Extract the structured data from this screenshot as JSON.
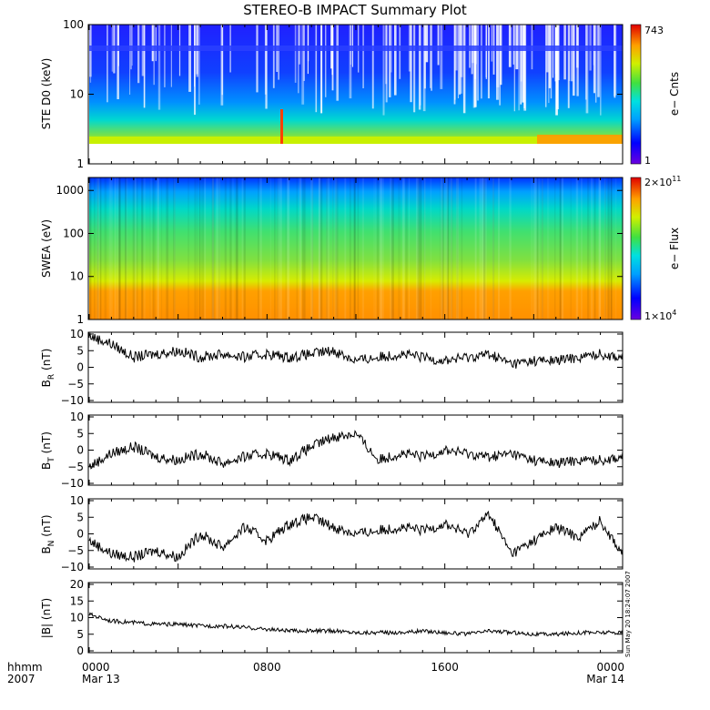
{
  "chart_data": [
    {
      "type": "heatmap",
      "title": "STEREO-B IMPACT Summary Plot",
      "ylabel": "STE D0 (keV)",
      "yscale": "log",
      "ylim": [
        1,
        100
      ],
      "yticks": [
        "1",
        "10",
        "100"
      ],
      "colorbar_label": "e− Cnts",
      "colorbar_max_label": "743",
      "colorbar_min_label": "1"
    },
    {
      "type": "heatmap",
      "ylabel": "SWEA (eV)",
      "yscale": "log",
      "ylim": [
        1,
        2000
      ],
      "yticks": [
        "1",
        "10",
        "100",
        "1000"
      ],
      "colorbar_label": "e− Flux",
      "colorbar_max_label": "2×10",
      "colorbar_max_exp": "11",
      "colorbar_min_label": "1×10",
      "colorbar_min_exp": "4"
    },
    {
      "type": "line",
      "ylabel_main": "B",
      "ylabel_sub": "R",
      "ylabel_unit": "(nT)",
      "ylim": [
        -10,
        10
      ],
      "yticks": [
        "−10",
        "−5",
        "0",
        "5",
        "10"
      ],
      "x_hours": [
        0,
        1,
        2,
        3,
        4,
        5,
        6,
        7,
        8,
        9,
        10,
        11,
        12,
        13,
        14,
        15,
        16,
        17,
        18,
        19,
        20,
        21,
        22,
        23,
        24
      ],
      "values": [
        9.5,
        7,
        3,
        4,
        5,
        3,
        4,
        3,
        4,
        3,
        4,
        5,
        2,
        3,
        4,
        3,
        2,
        3,
        4,
        1,
        2,
        2,
        3,
        4,
        3
      ]
    },
    {
      "type": "line",
      "ylabel_main": "B",
      "ylabel_sub": "T",
      "ylabel_unit": "(nT)",
      "ylim": [
        -10,
        10
      ],
      "yticks": [
        "−10",
        "−5",
        "0",
        "5",
        "10"
      ],
      "x_hours": [
        0,
        1,
        2,
        3,
        4,
        5,
        6,
        7,
        8,
        9,
        10,
        11,
        12,
        13,
        14,
        15,
        16,
        17,
        18,
        19,
        20,
        21,
        22,
        23,
        24
      ],
      "values": [
        -5,
        -1,
        1,
        -2,
        -3,
        -1,
        -4,
        -2,
        -1,
        -3,
        1,
        4,
        5,
        -3,
        -1,
        -2,
        0,
        -1,
        -2,
        -1,
        -3,
        -4,
        -3,
        -3,
        -2
      ]
    },
    {
      "type": "line",
      "ylabel_main": "B",
      "ylabel_sub": "N",
      "ylabel_unit": "(nT)",
      "ylim": [
        -10,
        10
      ],
      "yticks": [
        "−10",
        "−5",
        "0",
        "5",
        "10"
      ],
      "x_hours": [
        0,
        1,
        2,
        3,
        4,
        5,
        6,
        7,
        8,
        9,
        10,
        11,
        12,
        13,
        14,
        15,
        16,
        17,
        18,
        19,
        20,
        21,
        22,
        23,
        24
      ],
      "values": [
        -2,
        -6,
        -7,
        -5,
        -7,
        0,
        -4,
        2,
        -2,
        3,
        5,
        2,
        0,
        1,
        2,
        1,
        3,
        0,
        6,
        -6,
        -2,
        2,
        -1,
        4,
        -6
      ]
    },
    {
      "type": "line",
      "ylabel": "|B| (nT)",
      "ylim": [
        0,
        20
      ],
      "yticks": [
        "0",
        "5",
        "10",
        "15",
        "20"
      ],
      "x_hours": [
        0,
        1,
        2,
        3,
        4,
        5,
        6,
        7,
        8,
        9,
        10,
        11,
        12,
        13,
        14,
        15,
        16,
        17,
        18,
        19,
        20,
        21,
        22,
        23,
        24
      ],
      "values": [
        11,
        9,
        8.5,
        8,
        8,
        7.5,
        7.5,
        7,
        6.5,
        6,
        6,
        6,
        5.5,
        5.5,
        5.5,
        6,
        5.5,
        5,
        6,
        5.5,
        5,
        5,
        5.5,
        5.5,
        5.5
      ]
    }
  ],
  "x_axis": {
    "left_label_top": "hhmm",
    "left_label_bottom": "2007",
    "ticks": [
      {
        "hour": 0,
        "label": "0000",
        "date": "Mar 13"
      },
      {
        "hour": 8,
        "label": "0800",
        "date": ""
      },
      {
        "hour": 16,
        "label": "1600",
        "date": ""
      },
      {
        "hour": 24,
        "label": "0000",
        "date": "Mar 14"
      }
    ]
  },
  "stamp": "Sun May 20 18:24:07 2007",
  "colors": {
    "heatmap_low": "#5a00d0",
    "heatmap_high": "#e00000",
    "trace": "#000000",
    "background": "#ffffff"
  }
}
